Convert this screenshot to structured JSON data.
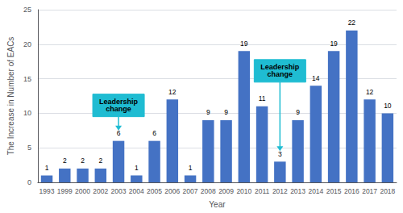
{
  "chart_data": {
    "type": "bar",
    "categories": [
      "1993",
      "1999",
      "2000",
      "2002",
      "2003",
      "2004",
      "2005",
      "2006",
      "2007",
      "2008",
      "2009",
      "2010",
      "2011",
      "2012",
      "2013",
      "2014",
      "2015",
      "2016",
      "2017",
      "2018"
    ],
    "values": [
      1,
      2,
      2,
      2,
      6,
      1,
      6,
      12,
      1,
      9,
      9,
      19,
      11,
      3,
      9,
      14,
      19,
      22,
      12,
      10
    ],
    "color": "#4472C4",
    "xlabel": "Year",
    "ylabel": "The Increase in Number of EACs",
    "ylim": [
      0,
      25
    ],
    "yticks": [
      0,
      5,
      10,
      15,
      20,
      25
    ],
    "grid": true,
    "data_labels": true,
    "annotations": [
      {
        "text": "Leadership\nchange",
        "category": "2003",
        "color": "#1FBCD2"
      },
      {
        "text": "Leadership\nchange",
        "category": "2012",
        "color": "#1FBCD2"
      }
    ]
  }
}
